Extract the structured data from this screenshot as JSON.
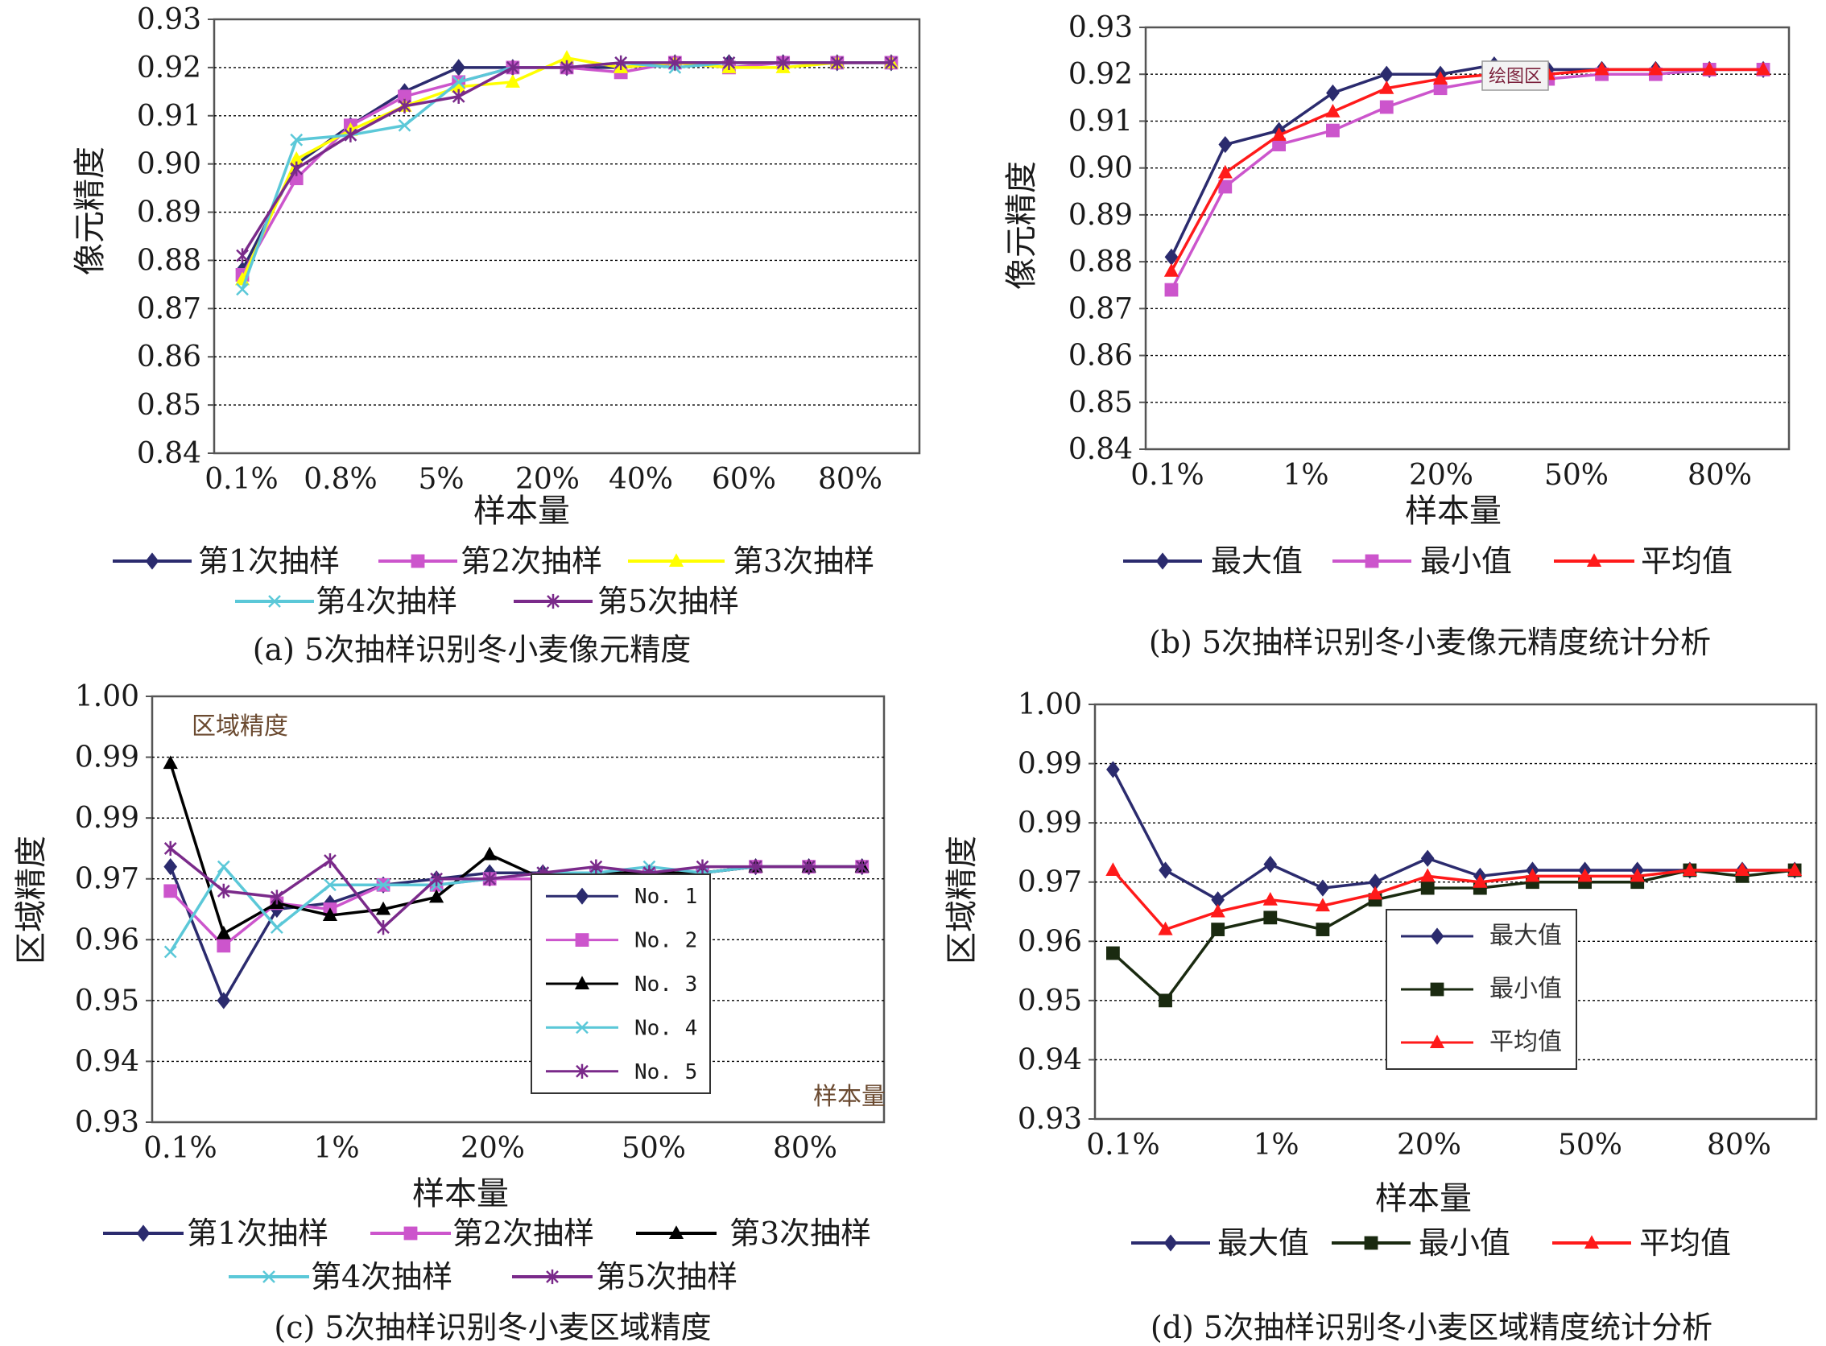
{
  "panels": [
    {
      "id": "a",
      "caption": "(a) 5次抽样识别冬小麦像元精度",
      "xlabel": "样本量",
      "ylabel": "像元精度",
      "yticks": [
        "0.84",
        "0.85",
        "0.86",
        "0.87",
        "0.88",
        "0.89",
        "0.90",
        "0.91",
        "0.92",
        "0.93"
      ],
      "xticks": [
        "0.1%",
        "0.8%",
        "5%",
        "20%",
        "40%",
        "60%",
        "80%"
      ],
      "legend": [
        "第1次抽样",
        "第2次抽样",
        "第3次抽样",
        "第4次抽样",
        "第5次抽样"
      ],
      "colors": {
        "grid": "#000000",
        "frame": "#555555"
      }
    },
    {
      "id": "b",
      "caption": "(b) 5次抽样识别冬小麦像元精度统计分析",
      "xlabel": "样本量",
      "ylabel": "像元精度",
      "yticks": [
        "0.84",
        "0.85",
        "0.86",
        "0.87",
        "0.88",
        "0.89",
        "0.90",
        "0.91",
        "0.92",
        "0.93"
      ],
      "xticks": [
        "0.1%",
        "1%",
        "20%",
        "50%",
        "80%"
      ],
      "legend": [
        "最大值",
        "最小值",
        "平均值"
      ],
      "tooltip": "绘图区"
    },
    {
      "id": "c",
      "caption": "(c) 5次抽样识别冬小麦区域精度",
      "xlabel": "样本量",
      "ylabel": "区域精度",
      "inner_title": "区域精度",
      "inner_xlabel": "样本量",
      "yticks": [
        "0.93",
        "0.94",
        "0.95",
        "0.96",
        "0.97",
        "0.99",
        "0.99",
        "1.00"
      ],
      "xticks": [
        "0.1%",
        "1%",
        "20%",
        "50%",
        "80%"
      ],
      "box_legend": [
        "No. 1",
        "No. 2",
        "No. 3",
        "No. 4",
        "No. 5"
      ],
      "legend": [
        "第1次抽样",
        "第2次抽样",
        "第3次抽样",
        "第4次抽样",
        "第5次抽样"
      ]
    },
    {
      "id": "d",
      "caption": "(d) 5次抽样识别冬小麦区域精度统计分析",
      "xlabel": "样本量",
      "ylabel": "区域精度",
      "yticks": [
        "0.93",
        "0.94",
        "0.95",
        "0.96",
        "0.97",
        "0.99",
        "0.99",
        "1.00"
      ],
      "xticks": [
        "0.1%",
        "1%",
        "20%",
        "50%",
        "80%"
      ],
      "box_legend": [
        "最大值",
        "最小值",
        "平均值"
      ],
      "legend": [
        "最大值",
        "最小值",
        "平均值"
      ]
    }
  ],
  "chart_data": [
    {
      "type": "line",
      "panel": "a",
      "ylim": [
        0.84,
        0.93
      ],
      "y_step": 0.01,
      "n_points": 13,
      "series": [
        {
          "name": "第1次抽样",
          "color": "#2b2b6e",
          "marker": "diamond",
          "values": [
            0.878,
            0.9,
            0.908,
            0.915,
            0.92,
            0.92,
            0.92,
            0.92,
            0.921,
            0.921,
            0.921,
            0.921,
            0.921
          ]
        },
        {
          "name": "第2次抽样",
          "color": "#cc55cc",
          "marker": "square",
          "values": [
            0.877,
            0.897,
            0.908,
            0.914,
            0.917,
            0.92,
            0.92,
            0.919,
            0.921,
            0.92,
            0.921,
            0.921,
            0.921
          ]
        },
        {
          "name": "第3次抽样",
          "color": "#ffff00",
          "marker": "triangle",
          "values": [
            0.876,
            0.901,
            0.907,
            0.912,
            0.916,
            0.917,
            0.922,
            0.92,
            0.921,
            0.92,
            0.92,
            0.921,
            0.921
          ]
        },
        {
          "name": "第4次抽样",
          "color": "#5bc8d8",
          "marker": "x",
          "values": [
            0.874,
            0.905,
            0.906,
            0.908,
            0.917,
            0.92,
            0.92,
            0.921,
            0.92,
            0.921,
            0.921,
            0.921,
            0.921
          ]
        },
        {
          "name": "第5次抽样",
          "color": "#7a2a8a",
          "marker": "star",
          "values": [
            0.881,
            0.899,
            0.906,
            0.912,
            0.914,
            0.92,
            0.92,
            0.921,
            0.921,
            0.921,
            0.921,
            0.921,
            0.921
          ]
        }
      ]
    },
    {
      "type": "line",
      "panel": "b",
      "ylim": [
        0.84,
        0.93
      ],
      "y_step": 0.01,
      "n_points": 12,
      "series": [
        {
          "name": "最大值",
          "color": "#2b2b6e",
          "marker": "diamond",
          "values": [
            0.881,
            0.905,
            0.908,
            0.916,
            0.92,
            0.92,
            0.922,
            0.921,
            0.921,
            0.921,
            0.921,
            0.921
          ]
        },
        {
          "name": "最小值",
          "color": "#cc55cc",
          "marker": "square",
          "values": [
            0.874,
            0.896,
            0.905,
            0.908,
            0.913,
            0.917,
            0.919,
            0.919,
            0.92,
            0.92,
            0.921,
            0.921
          ]
        },
        {
          "name": "平均值",
          "color": "#ff1a1a",
          "marker": "triangle",
          "values": [
            0.878,
            0.899,
            0.907,
            0.912,
            0.917,
            0.919,
            0.92,
            0.92,
            0.921,
            0.921,
            0.921,
            0.921
          ]
        }
      ]
    },
    {
      "type": "line",
      "panel": "c",
      "ylim": [
        0.93,
        1.0
      ],
      "y_step": 0.01,
      "n_points": 14,
      "series": [
        {
          "name": "No. 1",
          "color": "#2b2b6e",
          "marker": "diamond",
          "values": [
            0.972,
            0.95,
            0.965,
            0.966,
            0.969,
            0.97,
            0.971,
            0.971,
            0.971,
            0.971,
            0.971,
            0.972,
            0.972,
            0.972
          ]
        },
        {
          "name": "No. 2",
          "color": "#cc55cc",
          "marker": "square",
          "values": [
            0.968,
            0.959,
            0.966,
            0.965,
            0.969,
            0.969,
            0.97,
            0.97,
            0.971,
            0.971,
            0.971,
            0.972,
            0.972,
            0.972
          ]
        },
        {
          "name": "No. 3",
          "color": "#000000",
          "marker": "triangle",
          "values": [
            0.989,
            0.961,
            0.966,
            0.964,
            0.965,
            0.967,
            0.974,
            0.97,
            0.971,
            0.971,
            0.971,
            0.972,
            0.972,
            0.972
          ]
        },
        {
          "name": "No. 4",
          "color": "#5bc8d8",
          "marker": "x",
          "values": [
            0.958,
            0.972,
            0.962,
            0.969,
            0.969,
            0.969,
            0.97,
            0.971,
            0.971,
            0.972,
            0.971,
            0.972,
            0.972,
            0.972
          ]
        },
        {
          "name": "No. 5",
          "color": "#7a2a8a",
          "marker": "star",
          "values": [
            0.975,
            0.968,
            0.967,
            0.973,
            0.962,
            0.97,
            0.97,
            0.971,
            0.972,
            0.971,
            0.972,
            0.972,
            0.972,
            0.972
          ]
        }
      ]
    },
    {
      "type": "line",
      "panel": "d",
      "ylim": [
        0.93,
        1.0
      ],
      "y_step": 0.01,
      "n_points": 14,
      "series": [
        {
          "name": "最大值",
          "color": "#2b2b6e",
          "marker": "diamond",
          "values": [
            0.989,
            0.972,
            0.967,
            0.973,
            0.969,
            0.97,
            0.974,
            0.971,
            0.972,
            0.972,
            0.972,
            0.972,
            0.972,
            0.972
          ]
        },
        {
          "name": "最小值",
          "color": "#1a2a10",
          "marker": "square",
          "values": [
            0.958,
            0.95,
            0.962,
            0.964,
            0.962,
            0.967,
            0.969,
            0.969,
            0.97,
            0.97,
            0.97,
            0.972,
            0.971,
            0.972
          ]
        },
        {
          "name": "平均值",
          "color": "#ff1a1a",
          "marker": "triangle",
          "values": [
            0.972,
            0.962,
            0.965,
            0.967,
            0.966,
            0.968,
            0.971,
            0.97,
            0.971,
            0.971,
            0.971,
            0.972,
            0.972,
            0.972
          ]
        }
      ]
    }
  ]
}
